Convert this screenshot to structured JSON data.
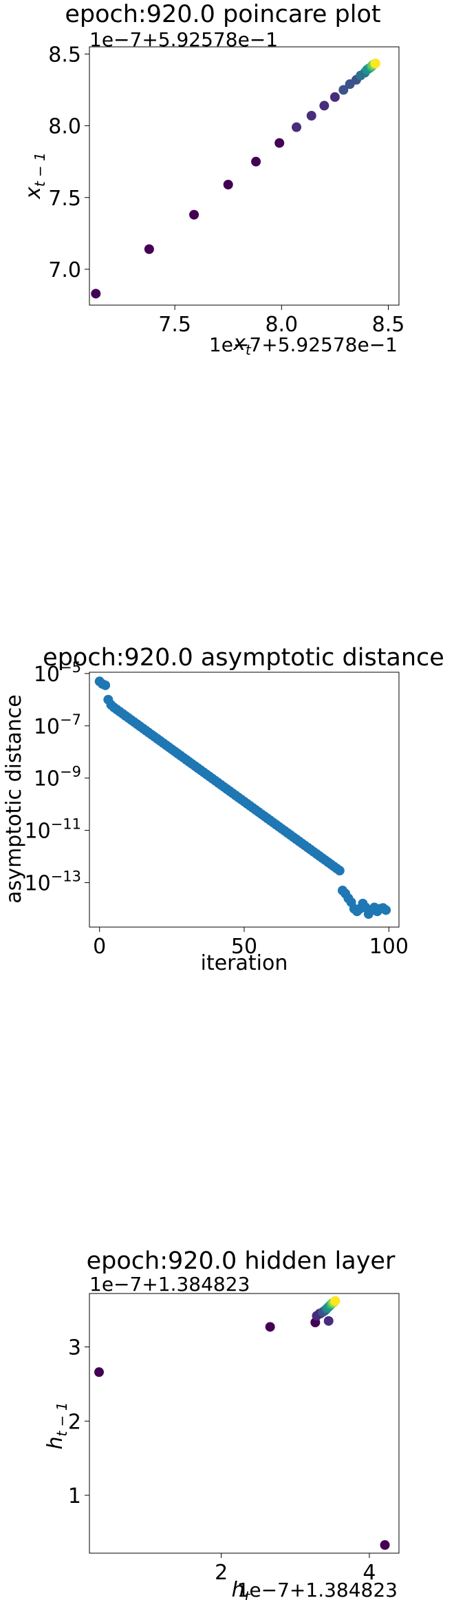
{
  "chart_data": [
    {
      "type": "scatter",
      "title": "epoch:920.0 poincare plot",
      "xlabel": "x_t",
      "ylabel": "x_{t-1}",
      "x_offset_text": "1e−7+5.92578e−1",
      "y_offset_text": "1e−7+5.92578e−1",
      "x_scale": "linear",
      "y_scale": "linear",
      "xlim": [
        7.1,
        8.55
      ],
      "ylim": [
        6.75,
        8.55
      ],
      "xticks": [
        7.5,
        8.0,
        8.5
      ],
      "xtick_labels": [
        "7.5",
        "8.0",
        "8.5"
      ],
      "yticks": [
        7.0,
        7.5,
        8.0,
        8.5
      ],
      "ytick_labels": [
        "7.0",
        "7.5",
        "8.0",
        "8.5"
      ],
      "grid": false,
      "colormap": "viridis",
      "colors": [
        "#440154",
        "#472d7b",
        "#3b528b",
        "#2c728e",
        "#21918c",
        "#28ae80",
        "#5ec962",
        "#addc30",
        "#fde725"
      ],
      "x": [
        7.13,
        7.38,
        7.59,
        7.75,
        7.88,
        7.99,
        8.07,
        8.14,
        8.2,
        8.25,
        8.29,
        8.32,
        8.35,
        8.37,
        8.39,
        8.4,
        8.41,
        8.42,
        8.425,
        8.43,
        8.435,
        8.44
      ],
      "y": [
        6.83,
        7.14,
        7.38,
        7.59,
        7.75,
        7.88,
        7.99,
        8.07,
        8.14,
        8.2,
        8.25,
        8.29,
        8.32,
        8.35,
        8.37,
        8.39,
        8.4,
        8.41,
        8.42,
        8.425,
        8.43,
        8.435
      ]
    },
    {
      "type": "scatter",
      "title": "epoch:920.0 asymptotic distance",
      "xlabel": "iteration",
      "ylabel": "asymptotic distance",
      "x_scale": "linear",
      "y_scale": "log",
      "xlim": [
        -3.5,
        103.5
      ],
      "ylim_log10": [
        -14.7,
        -4.95
      ],
      "xticks": [
        0,
        50,
        100
      ],
      "xtick_labels": [
        "0",
        "50",
        "100"
      ],
      "yticks_log10": [
        -5,
        -7,
        -9,
        -11,
        -13
      ],
      "ytick_bases": [
        "10",
        "10",
        "10",
        "10",
        "10"
      ],
      "ytick_exponents": [
        "−5",
        "−7",
        "−9",
        "−11",
        "−13"
      ],
      "grid": false,
      "color": "#1f77b4",
      "log10_values": [
        -5.3,
        -5.4,
        -5.45,
        -6.0,
        -6.2,
        -6.3,
        -6.38,
        -6.46,
        -6.54,
        -6.62,
        -6.7,
        -6.78,
        -6.86,
        -6.94,
        -7.02,
        -7.1,
        -7.18,
        -7.26,
        -7.34,
        -7.42,
        -7.5,
        -7.58,
        -7.66,
        -7.74,
        -7.82,
        -7.9,
        -7.98,
        -8.06,
        -8.14,
        -8.22,
        -8.3,
        -8.38,
        -8.46,
        -8.54,
        -8.62,
        -8.7,
        -8.78,
        -8.86,
        -8.94,
        -9.02,
        -9.1,
        -9.18,
        -9.26,
        -9.34,
        -9.42,
        -9.5,
        -9.58,
        -9.66,
        -9.74,
        -9.82,
        -9.9,
        -9.98,
        -10.06,
        -10.14,
        -10.22,
        -10.3,
        -10.38,
        -10.46,
        -10.54,
        -10.62,
        -10.7,
        -10.78,
        -10.86,
        -10.94,
        -11.02,
        -11.1,
        -11.18,
        -11.26,
        -11.34,
        -11.42,
        -11.5,
        -11.58,
        -11.66,
        -11.74,
        -11.82,
        -11.9,
        -11.98,
        -12.06,
        -12.14,
        -12.22,
        -12.3,
        -12.38,
        -12.46,
        -12.54,
        -13.3,
        -13.42,
        -13.6,
        -13.75,
        -14.0,
        -14.1,
        -14.0,
        -13.8,
        -13.95,
        -14.2,
        -14.05,
        -13.95,
        -14.1,
        -14.0,
        -13.97,
        -14.05
      ]
    },
    {
      "type": "scatter",
      "title": "epoch:920.0 hidden layer",
      "xlabel": "h_t",
      "ylabel": "h_{t-1}",
      "x_offset_text": "1e−7+1.384823",
      "y_offset_text": "1e−7+1.384823",
      "x_scale": "linear",
      "y_scale": "linear",
      "xlim": [
        0.22,
        4.4
      ],
      "ylim": [
        0.22,
        3.72
      ],
      "xticks": [
        2,
        4
      ],
      "xtick_labels": [
        "2",
        "4"
      ],
      "yticks": [
        1,
        2,
        3
      ],
      "ytick_labels": [
        "1",
        "2",
        "3"
      ],
      "grid": false,
      "colormap": "viridis",
      "colors": [
        "#440154",
        "#472d7b",
        "#3b528b",
        "#2c728e",
        "#21918c",
        "#28ae80",
        "#5ec962",
        "#addc30",
        "#fde725"
      ],
      "x": [
        4.21,
        0.35,
        2.66,
        3.27,
        3.33,
        3.45,
        3.29,
        3.34,
        3.37,
        3.4,
        3.42,
        3.44,
        3.46,
        3.48,
        3.5,
        3.52,
        3.54
      ],
      "y": [
        0.33,
        2.66,
        3.27,
        3.33,
        3.45,
        3.35,
        3.42,
        3.45,
        3.47,
        3.49,
        3.51,
        3.53,
        3.55,
        3.57,
        3.59,
        3.6,
        3.62
      ]
    }
  ]
}
